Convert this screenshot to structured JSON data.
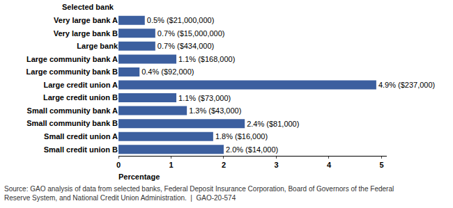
{
  "chart_data": {
    "type": "bar",
    "orientation": "horizontal",
    "y_label": "Selected bank",
    "x_label": "Percentage",
    "categories": [
      "Very large bank A",
      "Very large bank B",
      "Large bank",
      "Large community bank A",
      "Large community bank B",
      "Large credit union A",
      "Large credit union B",
      "Small community bank A",
      "Small community bank B",
      "Small credit union A",
      "Small credit union B"
    ],
    "values": [
      0.5,
      0.7,
      0.7,
      1.1,
      0.4,
      4.9,
      1.1,
      1.3,
      2.4,
      1.8,
      2.0
    ],
    "value_labels": [
      "0.5% ($21,000,000)",
      "0.7% ($15,000,000)",
      "0.7% ($434,000)",
      "1.1% ($168,000)",
      "0.4% ($92,000)",
      "4.9% ($237,000)",
      "1.1% ($73,000)",
      "1.3% ($43,000)",
      "2.4% ($81,000)",
      "1.8% ($16,000)",
      "2.0% ($14,000)"
    ],
    "data_labels": true,
    "color": "#3c5f9f",
    "xlim": [
      0,
      5.1
    ],
    "xticks": [
      0,
      1,
      2,
      3,
      4,
      5
    ],
    "grid": false,
    "notes": [
      "Source: GAO analysis of data from selected banks, Federal Deposit Insurance Corporation, Board of Governors of the Federal",
      "Reserve System, and National Credit Union Administration.  |  GAO-20-574"
    ]
  }
}
